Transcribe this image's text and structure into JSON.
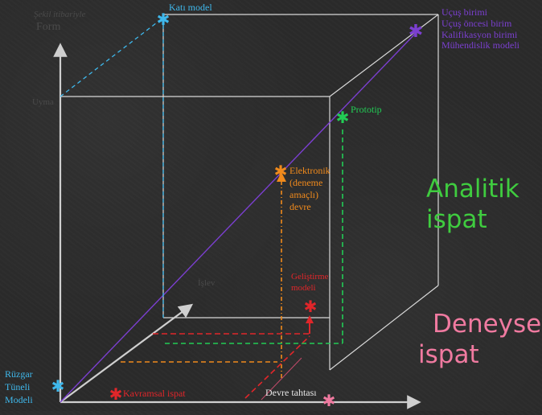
{
  "colors": {
    "white": "#e6e6e6",
    "cyan": "#3fb8ec",
    "purple": "#7b3fd0",
    "green": "#22cc55",
    "orange": "#f08a1c",
    "red": "#e0262a",
    "pink": "#f07aa0",
    "dim": "#555555"
  },
  "labels": {
    "top_left_line1": "Şekil itibariyle",
    "top_left_line2": "Form",
    "mid_left": "Uyma",
    "kati_model": "Katı model",
    "legend": [
      "Uçuş birimi",
      "Uçuş öncesi birim",
      "Kalifikasyon birimi",
      "Mühendislik modeli"
    ],
    "prototip": "Prototip",
    "elektronik": [
      "Elektronik",
      "(deneme",
      "amaçlı)",
      "devre"
    ],
    "gelistirme": [
      "Geliştirme",
      "modeli"
    ],
    "ruzgar": [
      "Rüzgar",
      "Tüneli",
      "Modeli"
    ],
    "kavramsal": "Kavramsal ispat",
    "devre_tahtasi": "Devre tahtası",
    "analitik": [
      "Analitik",
      "ispat"
    ],
    "deneysel": [
      "Deneysel",
      "ispat"
    ],
    "faded_axis": "İşlev"
  },
  "icons": {
    "marker": "asterisk-marker",
    "arrow": "arrow-head"
  }
}
